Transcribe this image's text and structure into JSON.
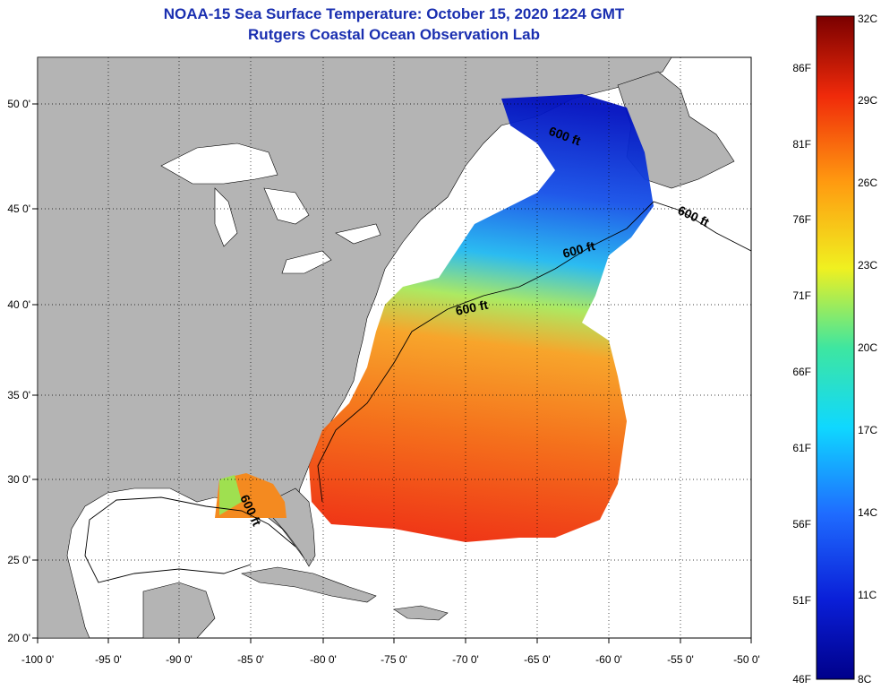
{
  "title": "NOAA-15 Sea Surface Temperature:  October 15, 2020 1224 GMT",
  "subtitle": "Rutgers Coastal Ocean Observation Lab",
  "x_axis": {
    "ticks": [
      "-100 0'",
      "-95 0'",
      "-90 0'",
      "-85 0'",
      "-80 0'",
      "-75 0'",
      "-70 0'",
      "-65 0'",
      "-60 0'",
      "-55 0'",
      "-50 0'"
    ]
  },
  "y_axis": {
    "ticks": [
      "20 0'",
      "25 0'",
      "30 0'",
      "35 0'",
      "40 0'",
      "45 0'",
      "50 0'"
    ]
  },
  "contour_labels": [
    "600 ft",
    "600 ft",
    "600 ft",
    "600 ft",
    "600 ft"
  ],
  "colorbar": {
    "celsius": [
      "32C",
      "29C",
      "26C",
      "23C",
      "20C",
      "17C",
      "14C",
      "11C",
      "8C"
    ],
    "fahrenheit": [
      "86F",
      "81F",
      "76F",
      "71F",
      "66F",
      "61F",
      "56F",
      "51F",
      "46F"
    ]
  },
  "colors": {
    "title": "#1a2fb0",
    "land": "#b4b4b4",
    "ocean_nodata": "#ffffff"
  }
}
